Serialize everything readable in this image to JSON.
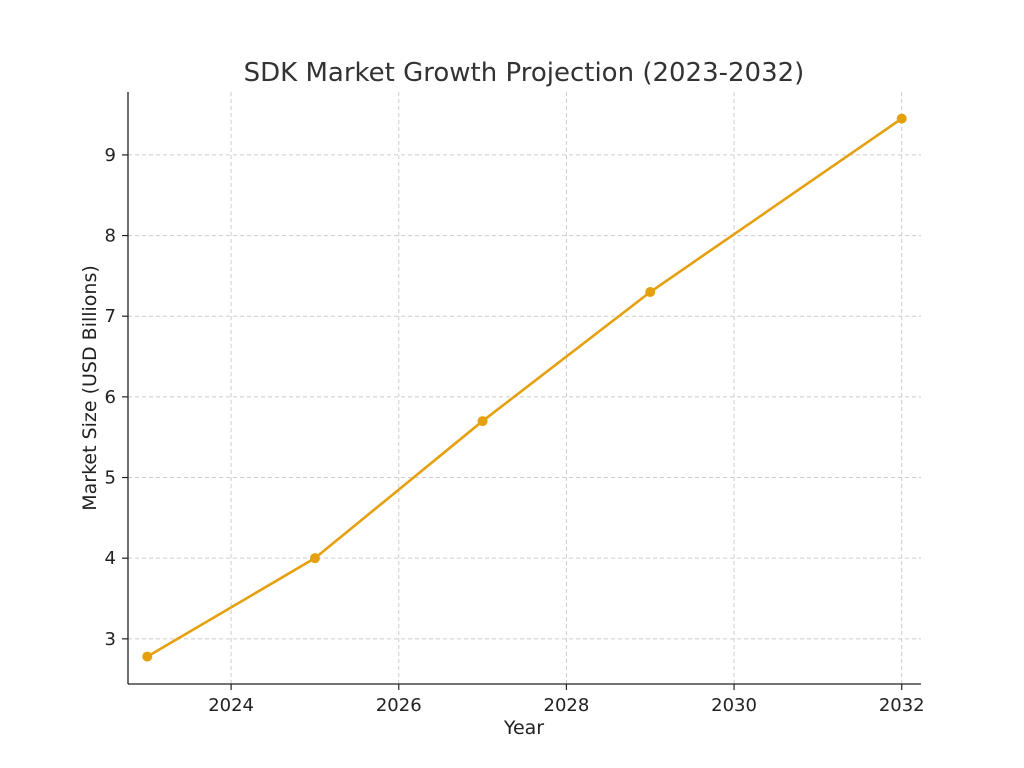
{
  "chart_data": {
    "type": "line",
    "title": "SDK Market Growth Projection (2023-2032)",
    "xlabel": "Year",
    "ylabel": "Market Size (USD Billions)",
    "x": [
      2023,
      2025,
      2027,
      2029,
      2032
    ],
    "series": [
      {
        "values": [
          2.78,
          4.0,
          5.7,
          7.3,
          9.45
        ],
        "color": "#E5A00D"
      }
    ],
    "xlim": [
      2022.77,
      2032.23
    ],
    "ylim": [
      2.44,
      9.78
    ],
    "xticks": [
      2024,
      2026,
      2028,
      2030,
      2032
    ],
    "yticks": [
      3,
      4,
      5,
      6,
      7,
      8,
      9
    ],
    "grid": true
  }
}
